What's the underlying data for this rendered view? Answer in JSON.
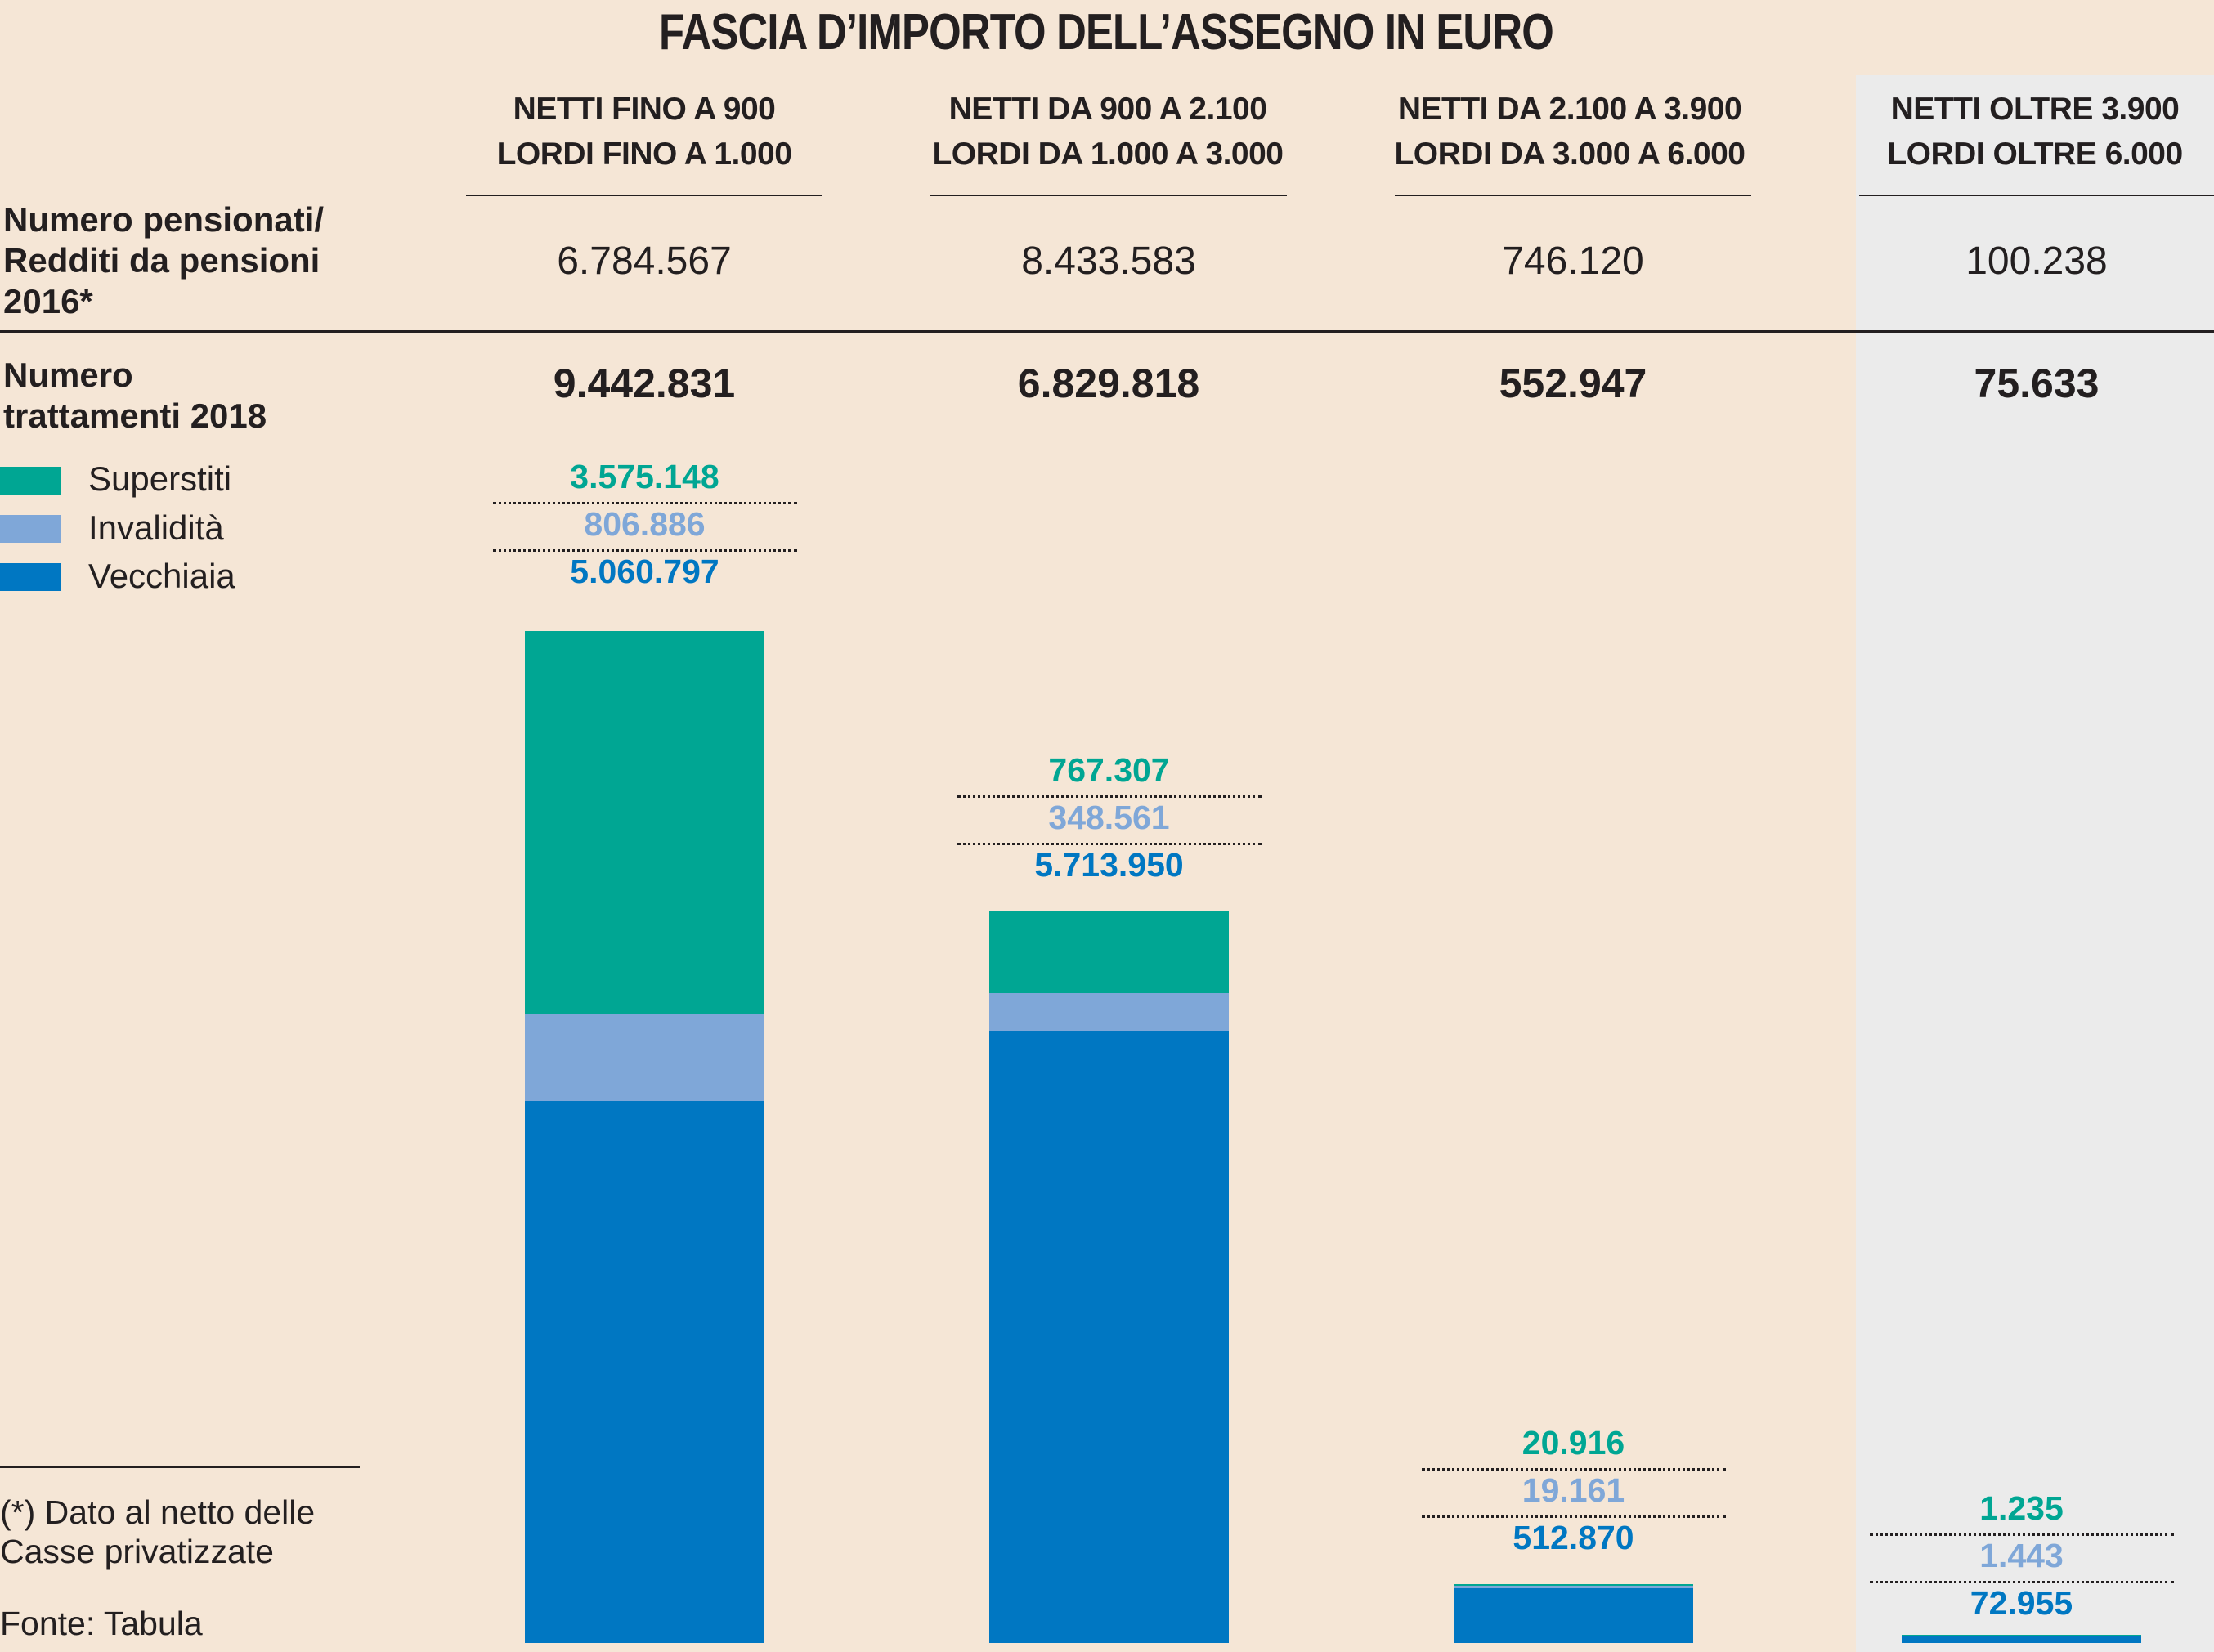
{
  "title": "FASCIA D’IMPORTO DELL’ASSEGNO IN EURO",
  "colors": {
    "superstiti": "#00a693",
    "invalidita": "#7fa7d8",
    "vecchiaia": "#0077c2",
    "background": "#f5e6d6",
    "highlight_panel": "#ebebeb"
  },
  "rows": {
    "pensionati_label": [
      "Numero pensionati/",
      "Redditi da pensioni",
      "2016*"
    ],
    "trattamenti_label": [
      "Numero",
      "trattamenti 2018"
    ]
  },
  "legend": [
    {
      "label": "Superstiti",
      "icon": "teal-square"
    },
    {
      "label": "Invalidità",
      "icon": "light-blue-square"
    },
    {
      "label": "Vecchiaia",
      "icon": "blue-square"
    }
  ],
  "footnote": [
    "(*) Dato al netto delle",
    "Casse privatizzate"
  ],
  "source": "Fonte: Tabula",
  "chart_data": {
    "type": "bar",
    "stacked": true,
    "title": "FASCIA D’IMPORTO DELL’ASSEGNO IN EURO",
    "categories": [
      {
        "line1": "NETTI FINO A 900",
        "line2": "LORDI FINO A 1.000"
      },
      {
        "line1": "NETTI DA 900 A 2.100",
        "line2": "LORDI  DA 1.000 A 3.000"
      },
      {
        "line1": "NETTI DA 2.100 A 3.900",
        "line2": "LORDI DA 3.000 A 6.000"
      },
      {
        "line1": "NETTI OLTRE 3.900",
        "line2": "LORDI OLTRE 6.000"
      }
    ],
    "pensionati_2016": [
      "6.784.567",
      "8.433.583",
      "746.120",
      "100.238"
    ],
    "trattamenti_2018": [
      "9.442.831",
      "6.829.818",
      "552.947",
      "75.633"
    ],
    "series": [
      {
        "name": "Superstiti",
        "values": [
          3575148,
          767307,
          20916,
          1235
        ],
        "labels": [
          "3.575.148",
          "767.307",
          "20.916",
          "1.235"
        ]
      },
      {
        "name": "Invalidità",
        "values": [
          806886,
          348561,
          19161,
          1443
        ],
        "labels": [
          "806.886",
          "348.561",
          "19.161",
          "1.443"
        ]
      },
      {
        "name": "Vecchiaia",
        "values": [
          5060797,
          5713950,
          512870,
          72955
        ],
        "labels": [
          "5.060.797",
          "5.713.950",
          "512.870",
          "72.955"
        ]
      }
    ],
    "ylim": [
      0,
      9442831
    ],
    "grid": false,
    "legend_position": "top-left"
  }
}
